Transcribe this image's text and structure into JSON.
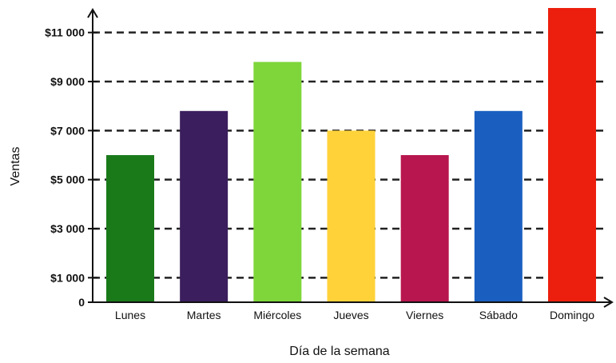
{
  "chart_data": {
    "type": "bar",
    "title": "",
    "xlabel": "Día de la semana",
    "ylabel": "Ventas",
    "categories": [
      "Lunes",
      "Martes",
      "Miércoles",
      "Jueves",
      "Viernes",
      "Sábado",
      "Domingo"
    ],
    "values": [
      6000,
      7800,
      9800,
      7000,
      6000,
      7800,
      12000
    ],
    "bar_colors": [
      "#1a7a1a",
      "#3b1e5e",
      "#7ed63a",
      "#ffd23a",
      "#b8164e",
      "#1a5fc0",
      "#ec1f0e"
    ],
    "ylim": [
      0,
      12000
    ],
    "yticks": [
      0,
      1000,
      3000,
      5000,
      7000,
      9000,
      11000
    ],
    "ytick_labels": [
      "0",
      "$1 000",
      "$3 000",
      "$5 000",
      "$7 000",
      "$9 000",
      "$11 000"
    ],
    "grid": "dashed horizontal at labeled ticks",
    "legend": "none"
  }
}
